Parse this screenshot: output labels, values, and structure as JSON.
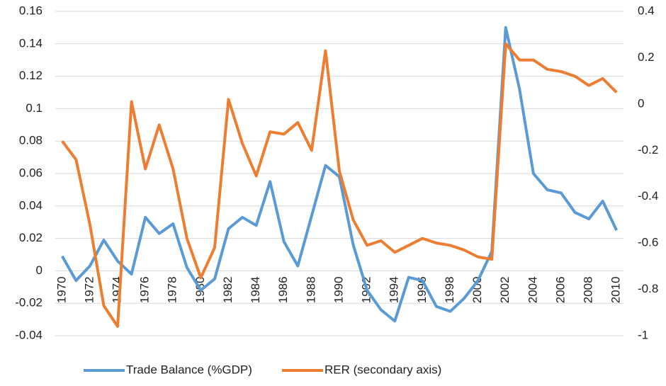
{
  "chart_data": {
    "type": "line",
    "x": [
      1970,
      1971,
      1972,
      1973,
      1974,
      1975,
      1976,
      1977,
      1978,
      1979,
      1980,
      1981,
      1982,
      1983,
      1984,
      1985,
      1986,
      1987,
      1988,
      1989,
      1990,
      1991,
      1992,
      1993,
      1994,
      1995,
      1996,
      1997,
      1998,
      1999,
      2000,
      2001,
      2002,
      2003,
      2004,
      2005,
      2006,
      2007,
      2008,
      2009,
      2010
    ],
    "xlim": [
      1969.5,
      2010.5
    ],
    "xticks": [
      1970,
      1972,
      1974,
      1976,
      1978,
      1980,
      1982,
      1984,
      1986,
      1988,
      1990,
      1992,
      1994,
      1996,
      1998,
      2000,
      2002,
      2004,
      2006,
      2008,
      2010
    ],
    "ylim": [
      -0.04,
      0.16
    ],
    "yticks": [
      -0.04,
      -0.02,
      0,
      0.02,
      0.04,
      0.06,
      0.08,
      0.1,
      0.12,
      0.14,
      0.16
    ],
    "y2lim": [
      -1,
      0.4
    ],
    "y2ticks": [
      -1,
      -0.8,
      -0.6,
      -0.4,
      -0.2,
      0,
      0.2,
      0.4
    ],
    "grid": true,
    "legend": "bottom",
    "series": [
      {
        "name": "Trade Balance (%GDP)",
        "color": "#5b9bd5",
        "values": [
          0.009,
          -0.006,
          0.003,
          0.019,
          0.006,
          -0.002,
          0.033,
          0.023,
          0.029,
          0.002,
          -0.012,
          -0.005,
          0.026,
          0.033,
          0.028,
          0.055,
          0.018,
          0.003,
          0.034,
          0.065,
          0.058,
          0.016,
          -0.012,
          -0.024,
          -0.031,
          -0.004,
          -0.006,
          -0.022,
          -0.025,
          -0.017,
          -0.006,
          0.012,
          0.15,
          0.112,
          0.06,
          0.05,
          0.048,
          0.036,
          0.032,
          0.043,
          0.025
        ]
      },
      {
        "name": "RER (secondary axis)",
        "color": "#ed7d31",
        "axis": "y2",
        "values": [
          -0.16,
          -0.24,
          -0.52,
          -0.87,
          -0.96,
          0.01,
          -0.28,
          -0.09,
          -0.28,
          -0.58,
          -0.75,
          -0.62,
          0.02,
          -0.17,
          -0.31,
          -0.12,
          -0.13,
          -0.08,
          -0.2,
          0.23,
          -0.29,
          -0.5,
          -0.61,
          -0.59,
          -0.64,
          -0.61,
          -0.58,
          -0.6,
          -0.61,
          -0.63,
          -0.66,
          -0.67,
          0.26,
          0.19,
          0.19,
          0.15,
          0.14,
          0.12,
          0.08,
          0.11,
          0.05
        ]
      }
    ]
  }
}
